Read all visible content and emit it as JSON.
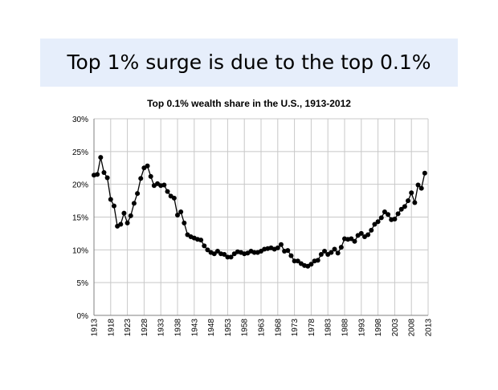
{
  "slide": {
    "title": "Top 1% surge is due to the top 0.1%"
  },
  "chart_data": {
    "type": "line",
    "title": "Top 0.1% wealth share in the U.S., 1913-2012",
    "xlabel": "",
    "ylabel": "",
    "xlim": [
      1913,
      2013
    ],
    "ylim": [
      0,
      30
    ],
    "x_ticks": [
      1913,
      1918,
      1923,
      1928,
      1933,
      1938,
      1943,
      1948,
      1953,
      1958,
      1963,
      1968,
      1973,
      1978,
      1983,
      1988,
      1993,
      1998,
      2003,
      2008,
      2013
    ],
    "y_ticks": [
      0,
      5,
      10,
      15,
      20,
      25,
      30
    ],
    "y_tick_labels": [
      "0%",
      "5%",
      "10%",
      "15%",
      "20%",
      "25%",
      "30%"
    ],
    "grid": true,
    "line_color": "#000000",
    "series": [
      {
        "x": [
          1913,
          1914,
          1915,
          1916,
          1917,
          1918,
          1919,
          1920,
          1921,
          1922,
          1923,
          1924,
          1925,
          1926,
          1927,
          1928,
          1929,
          1930,
          1931,
          1932,
          1933,
          1934,
          1935,
          1936,
          1937,
          1938,
          1939,
          1940,
          1941,
          1942,
          1943,
          1944,
          1945,
          1946,
          1947,
          1948,
          1949,
          1950,
          1951,
          1952,
          1953,
          1954,
          1955,
          1956,
          1957,
          1958,
          1959,
          1960,
          1961,
          1962,
          1963,
          1964,
          1965,
          1966,
          1967,
          1968,
          1969,
          1970,
          1971,
          1972,
          1973,
          1974,
          1975,
          1976,
          1977,
          1978,
          1979,
          1980,
          1981,
          1982,
          1983,
          1984,
          1985,
          1986,
          1987,
          1988,
          1989,
          1990,
          1991,
          1992,
          1993,
          1994,
          1995,
          1996,
          1997,
          1998,
          1999,
          2000,
          2001,
          2002,
          2003,
          2004,
          2005,
          2006,
          2007,
          2008,
          2009,
          2010,
          2011,
          2012
        ],
        "values": [
          21.4,
          21.5,
          24.1,
          21.8,
          21.0,
          17.7,
          16.7,
          13.6,
          13.9,
          15.6,
          14.1,
          15.2,
          17.1,
          18.6,
          20.9,
          22.5,
          22.8,
          21.2,
          19.8,
          20.1,
          19.8,
          19.9,
          18.9,
          18.2,
          17.9,
          15.3,
          15.8,
          14.1,
          12.3,
          12.0,
          11.8,
          11.6,
          11.5,
          10.6,
          10.0,
          9.6,
          9.4,
          9.8,
          9.4,
          9.3,
          8.9,
          8.9,
          9.4,
          9.7,
          9.6,
          9.4,
          9.5,
          9.8,
          9.6,
          9.6,
          9.8,
          10.1,
          10.2,
          10.3,
          10.1,
          10.3,
          10.8,
          9.8,
          9.9,
          9.1,
          8.3,
          8.3,
          7.9,
          7.6,
          7.5,
          7.8,
          8.3,
          8.4,
          9.3,
          9.8,
          9.3,
          9.6,
          10.1,
          9.5,
          10.4,
          11.7,
          11.6,
          11.7,
          11.3,
          12.2,
          12.5,
          12.0,
          12.3,
          13.0,
          13.9,
          14.3,
          14.9,
          15.8,
          15.4,
          14.6,
          14.7,
          15.5,
          16.2,
          16.6,
          17.5,
          18.7,
          17.2,
          19.9,
          19.4,
          21.7
        ]
      }
    ]
  }
}
